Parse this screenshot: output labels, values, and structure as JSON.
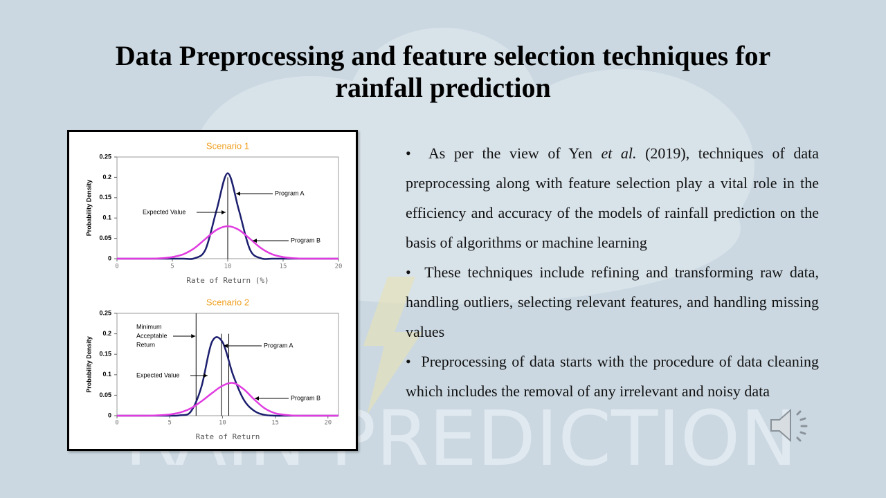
{
  "slide": {
    "title": "Data Preprocessing and feature selection techniques for rainfall prediction",
    "watermark": "RAIN PREDICTION",
    "bullets": [
      [
        "As per the view of Yen ",
        "et al.",
        " (2019), techniques of data preprocessing along with feature selection play a vital role in the efficiency and accuracy of the models of rainfall prediction on the basis of algorithms or machine learning"
      ],
      [
        "These techniques include refining and transforming raw data, handling outliers, selecting relevant features, and handling missing values"
      ],
      [
        "Preprocessing of data starts with the procedure of data cleaning which includes the removal of any irrelevant and noisy data"
      ]
    ]
  },
  "chart_data": [
    {
      "type": "line",
      "title": "Scenario 1",
      "xlabel": "Rate of Return (%)",
      "ylabel": "Probability Density",
      "x": [
        0,
        1,
        2,
        3,
        4,
        5,
        6,
        7,
        8,
        9,
        10,
        11,
        12,
        13,
        14,
        15,
        16,
        17,
        18,
        19,
        20
      ],
      "xlim": [
        0,
        20
      ],
      "xticks": [
        0,
        5,
        10,
        15,
        20
      ],
      "ylim": [
        0,
        0.25
      ],
      "yticks": [
        0,
        0.05,
        0.1,
        0.15,
        0.2,
        0.25
      ],
      "series": [
        {
          "name": "Program A",
          "color": "#1c1f6e",
          "values": [
            0,
            0,
            0,
            0,
            0,
            0,
            0,
            0.001,
            0.023,
            0.12,
            0.21,
            0.12,
            0.023,
            0.001,
            0,
            0,
            0,
            0,
            0,
            0,
            0
          ]
        },
        {
          "name": "Program B",
          "color": "#e03ce0",
          "values": [
            0,
            0,
            0,
            0,
            0.001,
            0.004,
            0.011,
            0.026,
            0.049,
            0.071,
            0.08,
            0.071,
            0.049,
            0.026,
            0.011,
            0.004,
            0.001,
            0,
            0,
            0,
            0
          ]
        }
      ],
      "expected_value": {
        "label": "Expected Value",
        "values": [
          10
        ]
      }
    },
    {
      "type": "line",
      "title": "Scenario 2",
      "xlabel": "Rate of Return",
      "ylabel": "Probability Density",
      "x": [
        0,
        1,
        2,
        3,
        4,
        5,
        6,
        7,
        8,
        9,
        10,
        11,
        12,
        13,
        14,
        15,
        16,
        17,
        18,
        19,
        20,
        21
      ],
      "xlim": [
        0,
        21
      ],
      "xticks": [
        0,
        5,
        10,
        15,
        20
      ],
      "ylim": [
        0,
        0.25
      ],
      "yticks": [
        0,
        0.05,
        0.1,
        0.15,
        0.2,
        0.25
      ],
      "series": [
        {
          "name": "Program A",
          "color": "#1c1f6e",
          "values": [
            0,
            0,
            0,
            0,
            0,
            0,
            0.001,
            0.01,
            0.07,
            0.18,
            0.18,
            0.1,
            0.04,
            0.012,
            0.002,
            0,
            0,
            0,
            0,
            0,
            0,
            0
          ]
        },
        {
          "name": "Program B",
          "color": "#e03ce0",
          "values": [
            0,
            0,
            0,
            0,
            0.001,
            0.003,
            0.008,
            0.018,
            0.035,
            0.055,
            0.073,
            0.08,
            0.065,
            0.04,
            0.018,
            0.006,
            0.002,
            0,
            0,
            0,
            0,
            0
          ]
        }
      ],
      "minimum_acceptable_return": {
        "label": [
          "Minimum",
          "Acceptable",
          "Return"
        ],
        "value": 7.5
      },
      "expected_value": {
        "label": "Expected Value",
        "values": [
          9.9,
          10.6
        ]
      }
    }
  ]
}
